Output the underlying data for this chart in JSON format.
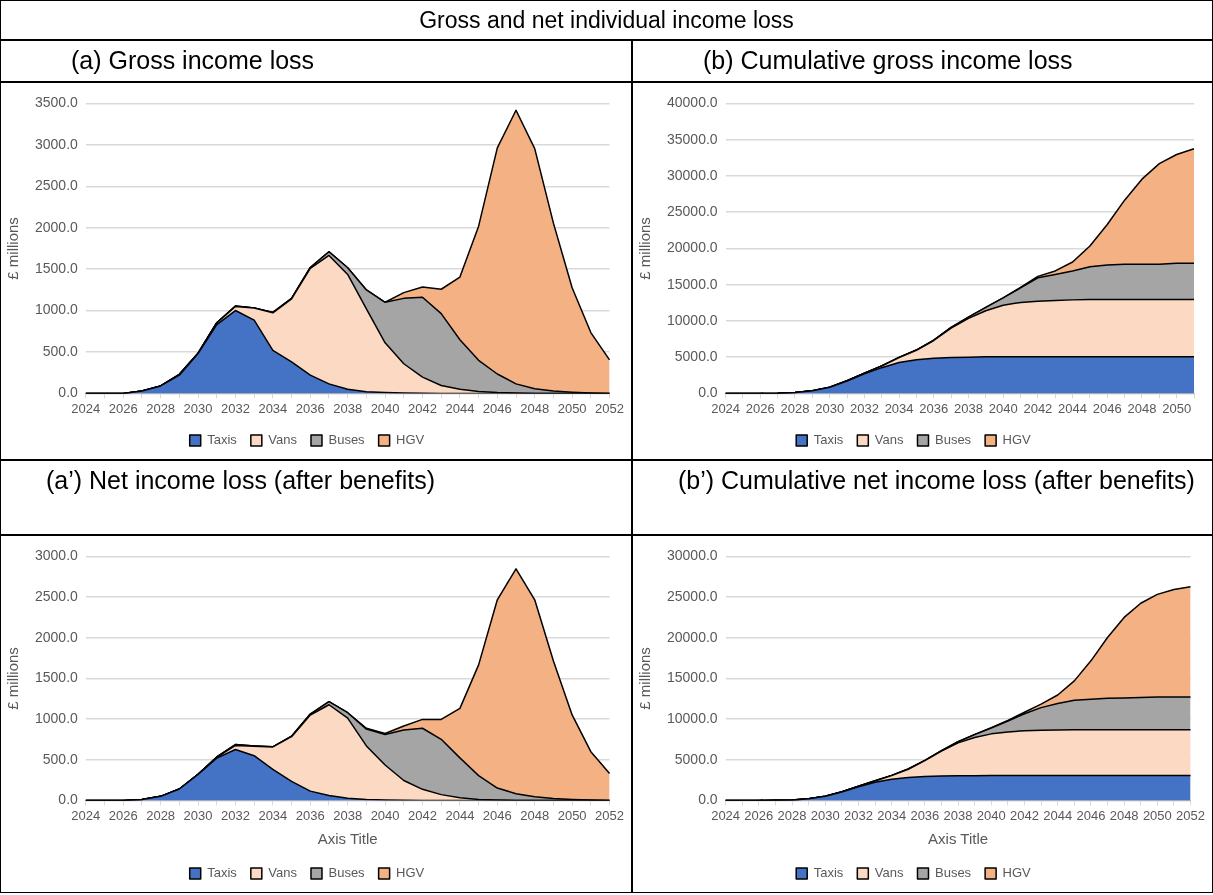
{
  "chart_data": [
    {
      "type": "area",
      "title": "Gross and net individual income loss",
      "subtitle": "(a)  Gross income loss",
      "ylabel": "£ millions",
      "stacked": true,
      "grid": "y",
      "legend": "bottom",
      "marker": "none",
      "categories": [
        "2024",
        null,
        "2026",
        null,
        "2028",
        null,
        "2030",
        null,
        "2032",
        null,
        "2034",
        null,
        "2036",
        null,
        "2038",
        null,
        "2040",
        null,
        "2042",
        null,
        "2044",
        null,
        "2046",
        null,
        "2048",
        null,
        "2050",
        null,
        "2052"
      ],
      "ylim": [
        0,
        3500
      ],
      "yticks": [
        {
          "value": 0,
          "label": "0.0"
        },
        {
          "value": 500,
          "label": "500.0"
        },
        {
          "value": 1000,
          "label": "1000.0"
        },
        {
          "value": 1500,
          "label": "1500.0"
        },
        {
          "value": 2000,
          "label": "2000.0"
        },
        {
          "value": 2500,
          "label": "2500.0"
        },
        {
          "value": 3000,
          "label": "3000.0"
        },
        {
          "value": 3500,
          "label": "3500.0"
        }
      ],
      "series": [
        {
          "name": "Taxis",
          "color": "#4472c4",
          "values": [
            0,
            0,
            0,
            30,
            90,
            220,
            480,
            830,
            1000,
            885,
            518,
            381,
            220,
            115,
            50,
            20,
            10,
            5,
            2,
            0,
            0,
            0,
            0,
            0,
            0,
            0,
            0,
            0,
            0
          ]
        },
        {
          "name": "Vans",
          "color": "#fbd9c2",
          "values": [
            0,
            0,
            0,
            0,
            0,
            10,
            6,
            20,
            50,
            145,
            455,
            760,
            1290,
            1550,
            1386,
            1000,
            600,
            353,
            195,
            96,
            50,
            23,
            10,
            5,
            0,
            0,
            0,
            0,
            0
          ]
        },
        {
          "name": "Buses",
          "color": "#a5a5a5",
          "values": [
            0,
            0,
            0,
            0,
            0,
            0,
            0,
            3,
            5,
            2,
            4,
            6,
            10,
            45,
            80,
            229,
            490,
            789,
            964,
            867,
            597,
            376,
            224,
            110,
            55,
            28,
            14,
            5,
            0
          ]
        },
        {
          "name": "HGV",
          "color": "#f4b183",
          "values": [
            0,
            0,
            0,
            0,
            0,
            0,
            0,
            0,
            0,
            0,
            0,
            0,
            0,
            0,
            0,
            0,
            0,
            69,
            123,
            294,
            757,
            1619,
            2729,
            3302,
            2899,
            2027,
            1261,
            729,
            404
          ]
        }
      ]
    },
    {
      "type": "area",
      "title": "(b)  Cumulative gross income loss",
      "ylabel": "£ millions",
      "stacked": true,
      "grid": "y",
      "legend": "bottom",
      "marker": "none",
      "categories": [
        "2024",
        null,
        "2026",
        null,
        "2028",
        null,
        "2030",
        null,
        "2032",
        null,
        "2034",
        null,
        "2036",
        null,
        "2038",
        null,
        "2040",
        null,
        "2042",
        null,
        "2044",
        null,
        "2046",
        null,
        "2048",
        null,
        "2050",
        null
      ],
      "ylim": [
        0,
        40000
      ],
      "yticks": [
        {
          "value": 0,
          "label": "0.0"
        },
        {
          "value": 5000,
          "label": "5000.0"
        },
        {
          "value": 10000,
          "label": "10000.0"
        },
        {
          "value": 15000,
          "label": "15000.0"
        },
        {
          "value": 20000,
          "label": "20000.0"
        },
        {
          "value": 25000,
          "label": "25000.0"
        },
        {
          "value": 30000,
          "label": "30000.0"
        },
        {
          "value": 35000,
          "label": "35000.0"
        },
        {
          "value": 40000,
          "label": "40000.0"
        }
      ],
      "series": [
        {
          "name": "Taxis",
          "color": "#4472c4",
          "values": [
            0,
            0,
            0,
            30,
            120,
            350,
            830,
            1700,
            2700,
            3550,
            4250,
            4650,
            4850,
            4950,
            4980,
            5040,
            5050,
            5050,
            5050,
            5050,
            5050,
            5050,
            5050,
            5050,
            5050,
            5050,
            5050,
            5050
          ]
        },
        {
          "name": "Vans",
          "color": "#fbd9c2",
          "values": [
            0,
            0,
            0,
            0,
            0,
            10,
            20,
            40,
            90,
            230,
            700,
            1300,
            2450,
            4050,
            5370,
            6360,
            7100,
            7500,
            7650,
            7750,
            7850,
            7900,
            7900,
            7900,
            7900,
            7900,
            7900,
            7900
          ]
        },
        {
          "name": "Buses",
          "color": "#a5a5a5",
          "values": [
            0,
            0,
            0,
            0,
            0,
            0,
            0,
            0,
            10,
            10,
            20,
            30,
            50,
            110,
            160,
            460,
            1020,
            2000,
            3250,
            3600,
            3970,
            4520,
            4750,
            4850,
            4850,
            4850,
            5000,
            5000
          ]
        },
        {
          "name": "HGV",
          "color": "#f4b183",
          "values": [
            0,
            0,
            0,
            0,
            0,
            0,
            0,
            0,
            0,
            0,
            0,
            0,
            0,
            0,
            0,
            0,
            0,
            70,
            190,
            490,
            1250,
            2860,
            5590,
            8850,
            11750,
            13900,
            15000,
            15800
          ]
        }
      ]
    },
    {
      "type": "area",
      "title": "(a’) Net income loss (after benefits)",
      "ylabel": "£ millions",
      "xlabel": "Axis Title",
      "stacked": true,
      "grid": "y",
      "legend": "bottom",
      "marker": "none",
      "categories": [
        "2024",
        null,
        "2026",
        null,
        "2028",
        null,
        "2030",
        null,
        "2032",
        null,
        "2034",
        null,
        "2036",
        null,
        "2038",
        null,
        "2040",
        null,
        "2042",
        null,
        "2044",
        null,
        "2046",
        null,
        "2048",
        null,
        "2050",
        null,
        "2052"
      ],
      "ylim": [
        0,
        3000
      ],
      "yticks": [
        {
          "value": 0,
          "label": "0.0"
        },
        {
          "value": 500,
          "label": "500.0"
        },
        {
          "value": 1000,
          "label": "1000.0"
        },
        {
          "value": 1500,
          "label": "1500.0"
        },
        {
          "value": 2000,
          "label": "2000.0"
        },
        {
          "value": 2500,
          "label": "2500.0"
        },
        {
          "value": 3000,
          "label": "3000.0"
        }
      ],
      "series": [
        {
          "name": "Taxis",
          "color": "#4472c4",
          "values": [
            0,
            0,
            0,
            10,
            50,
            140,
            320,
            520,
            626,
            550,
            381,
            234,
            114,
            60,
            27,
            10,
            5,
            2,
            0,
            0,
            0,
            0,
            0,
            0,
            0,
            0,
            0,
            0,
            0
          ]
        },
        {
          "name": "Vans",
          "color": "#fbd9c2",
          "values": [
            0,
            0,
            0,
            0,
            0,
            0,
            0,
            10,
            50,
            115,
            276,
            550,
            936,
            1116,
            985,
            660,
            430,
            243,
            136,
            71,
            33,
            11,
            5,
            0,
            0,
            0,
            0,
            0,
            0
          ]
        },
        {
          "name": "Buses",
          "color": "#a5a5a5",
          "values": [
            0,
            0,
            0,
            0,
            0,
            0,
            0,
            4,
            10,
            5,
            2,
            5,
            11,
            38,
            66,
            206,
            376,
            621,
            751,
            680,
            490,
            294,
            147,
            82,
            44,
            22,
            11,
            5,
            0
          ]
        },
        {
          "name": "HGV",
          "color": "#f4b183",
          "values": [
            0,
            0,
            0,
            0,
            0,
            0,
            0,
            0,
            0,
            0,
            0,
            0,
            0,
            0,
            0,
            11,
            11,
            49,
            109,
            245,
            609,
            1361,
            2314,
            2765,
            2422,
            1693,
            1040,
            594,
            332
          ]
        }
      ]
    },
    {
      "type": "area",
      "title": "(b’) Cumulative net income loss (after benefits)",
      "ylabel": "£ millions",
      "xlabel": "Axis Title",
      "stacked": true,
      "grid": "y",
      "legend": "bottom",
      "marker": "none",
      "categories": [
        "2024",
        null,
        "2026",
        null,
        "2028",
        null,
        "2030",
        null,
        "2032",
        null,
        "2034",
        null,
        "2036",
        null,
        "2038",
        null,
        "2040",
        null,
        "2042",
        null,
        "2044",
        null,
        "2046",
        null,
        "2048",
        null,
        "2050",
        null,
        "2052"
      ],
      "ylim": [
        0,
        30000
      ],
      "yticks": [
        {
          "value": 0,
          "label": "0.0"
        },
        {
          "value": 5000,
          "label": "5000.0"
        },
        {
          "value": 10000,
          "label": "10000.0"
        },
        {
          "value": 15000,
          "label": "15000.0"
        },
        {
          "value": 20000,
          "label": "20000.0"
        },
        {
          "value": 25000,
          "label": "25000.0"
        },
        {
          "value": 30000,
          "label": "30000.0"
        }
      ],
      "series": [
        {
          "name": "Taxis",
          "color": "#4472c4",
          "values": [
            0,
            0,
            0,
            10,
            60,
            200,
            520,
            1040,
            1670,
            2220,
            2600,
            2830,
            2950,
            3000,
            3030,
            3040,
            3050,
            3050,
            3050,
            3050,
            3050,
            3050,
            3050,
            3050,
            3050,
            3050,
            3050,
            3050,
            3050
          ]
        },
        {
          "name": "Vans",
          "color": "#fbd9c2",
          "values": [
            0,
            0,
            0,
            0,
            0,
            0,
            0,
            10,
            60,
            175,
            450,
            1000,
            1940,
            3050,
            4040,
            4700,
            5130,
            5370,
            5510,
            5580,
            5610,
            5650,
            5650,
            5650,
            5650,
            5650,
            5650,
            5650,
            5650
          ]
        },
        {
          "name": "Buses",
          "color": "#a5a5a5",
          "values": [
            0,
            0,
            0,
            0,
            0,
            0,
            0,
            4,
            14,
            19,
            21,
            26,
            37,
            75,
            141,
            347,
            723,
            1344,
            2095,
            2775,
            3265,
            3600,
            3750,
            3850,
            3900,
            3950,
            4000,
            4000,
            4000
          ]
        },
        {
          "name": "HGV",
          "color": "#f4b183",
          "values": [
            0,
            0,
            0,
            0,
            0,
            0,
            0,
            0,
            0,
            0,
            0,
            0,
            0,
            0,
            0,
            11,
            22,
            71,
            180,
            425,
            1034,
            2395,
            4709,
            7474,
            9896,
            11589,
            12629,
            13223,
            13555
          ]
        }
      ]
    }
  ]
}
